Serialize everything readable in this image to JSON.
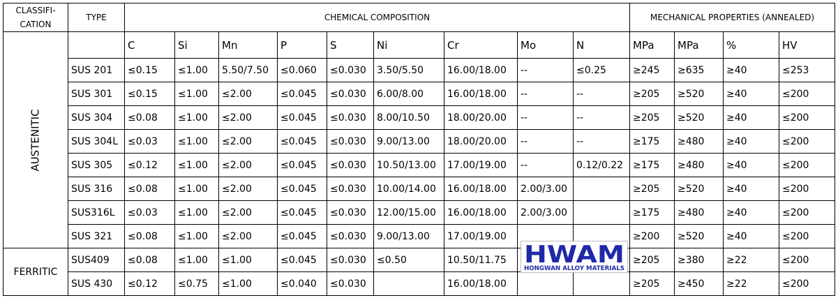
{
  "header": {
    "classification": "CLASSIFI-\nCATION",
    "type": "TYPE",
    "chemical": "CHEMICAL COMPOSITION",
    "mechanical": "MECHANICAL PROPERTIES (ANNEALED)"
  },
  "columns": [
    "C",
    "Si",
    "Mn",
    "P",
    "S",
    "Ni",
    "Cr",
    "Mo",
    "N",
    "MPa",
    "MPa",
    "%",
    "HV"
  ],
  "groups": [
    {
      "label": "AUSTENITIC",
      "vertical": true,
      "rows": [
        {
          "type": "SUS 201",
          "values": [
            "≤0.15",
            "≤1.00",
            "5.50/7.50",
            "≤0.060",
            "≤0.030",
            "3.50/5.50",
            "16.00/18.00",
            "--",
            "≤0.25",
            "≥245",
            "≥635",
            "≥40",
            "≤253"
          ]
        },
        {
          "type": "SUS 301",
          "values": [
            "≤0.15",
            "≤1.00",
            "≤2.00",
            "≤0.045",
            "≤0.030",
            "6.00/8.00",
            "16.00/18.00",
            "--",
            "--",
            "≥205",
            "≥520",
            "≥40",
            "≤200"
          ]
        },
        {
          "type": "SUS 304",
          "values": [
            "≤0.08",
            "≤1.00",
            "≤2.00",
            "≤0.045",
            "≤0.030",
            "8.00/10.50",
            "18.00/20.00",
            "--",
            "--",
            "≥205",
            "≥520",
            "≥40",
            "≤200"
          ]
        },
        {
          "type": "SUS 304L",
          "values": [
            "≤0.03",
            "≤1.00",
            "≤2.00",
            "≤0.045",
            "≤0.030",
            "9.00/13.00",
            "18.00/20.00",
            "--",
            "--",
            "≥175",
            "≥480",
            "≥40",
            "≤200"
          ]
        },
        {
          "type": "SUS 305",
          "values": [
            "≤0.12",
            "≤1.00",
            "≤2.00",
            "≤0.045",
            "≤0.030",
            "10.50/13.00",
            "17.00/19.00",
            "--",
            "0.12/0.22",
            "≥175",
            "≥480",
            "≥40",
            "≤200"
          ]
        },
        {
          "type": "SUS 316",
          "values": [
            "≤0.08",
            "≤1.00",
            "≤2.00",
            "≤0.045",
            "≤0.030",
            "10.00/14.00",
            "16.00/18.00",
            "2.00/3.00",
            "",
            "≥205",
            "≥520",
            "≥40",
            "≤200"
          ]
        },
        {
          "type": "SUS316L",
          "values": [
            "≤0.03",
            "≤1.00",
            "≤2.00",
            "≤0.045",
            "≤0.030",
            "12.00/15.00",
            "16.00/18.00",
            "2.00/3.00",
            "",
            "≥175",
            "≥480",
            "≥40",
            "≤200"
          ]
        },
        {
          "type": "SUS 321",
          "values": [
            "≤0.08",
            "≤1.00",
            "≤2.00",
            "≤0.045",
            "≤0.030",
            "9.00/13.00",
            "17.00/19.00",
            "",
            "",
            "≥200",
            "≥520",
            "≥40",
            "≤200"
          ]
        }
      ]
    },
    {
      "label": "FERRITIC",
      "vertical": false,
      "rows": [
        {
          "type": "SUS409",
          "values": [
            "≤0.08",
            "≤1.00",
            "≤1.00",
            "≤0.045",
            "≤0.030",
            "≤0.50",
            "10.50/11.75",
            "",
            "",
            "≥205",
            "≥380",
            "≥22",
            "≤200"
          ]
        },
        {
          "type": "SUS 430",
          "values": [
            "≤0.12",
            "≤0.75",
            "≤1.00",
            "≤0.040",
            "≤0.030",
            "",
            "16.00/18.00",
            "",
            "",
            "≥205",
            "≥450",
            "≥22",
            "≤200"
          ]
        }
      ]
    }
  ],
  "watermark": {
    "logo": "HWAM",
    "subtitle": "HONGWAN ALLOY MATERIALS",
    "color": "#2029a8"
  }
}
